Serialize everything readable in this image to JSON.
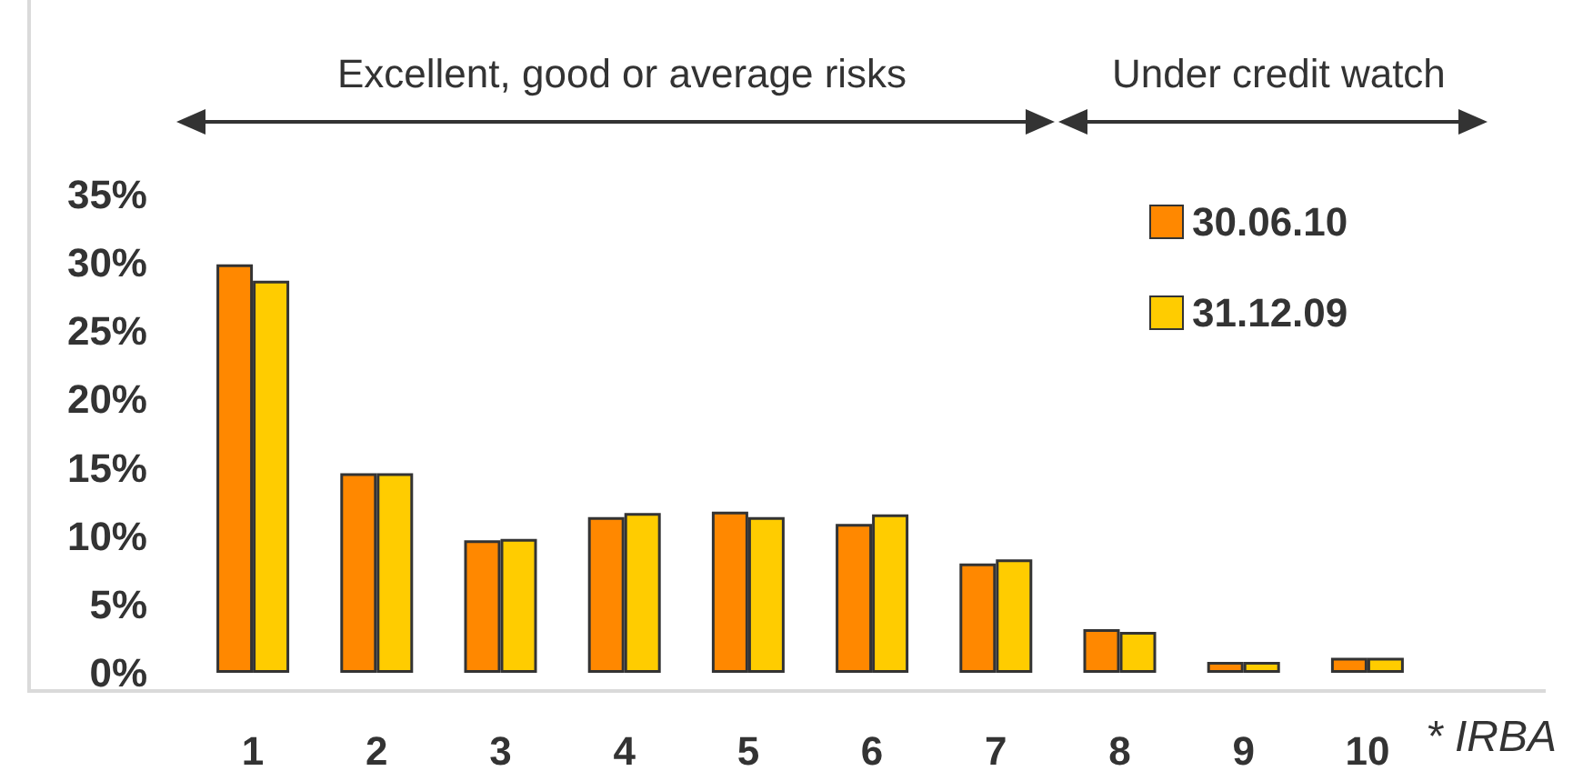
{
  "chart_data": {
    "type": "bar",
    "categories": [
      "1",
      "2",
      "3",
      "4",
      "5",
      "6",
      "7",
      "8",
      "9",
      "10"
    ],
    "series": [
      {
        "name": "30.06.10",
        "color": "#ff8800",
        "values": [
          29.9,
          14.6,
          9.7,
          11.4,
          11.8,
          10.9,
          8.0,
          3.2,
          0.8,
          1.1
        ]
      },
      {
        "name": "31.12.09",
        "color": "#ffcc00",
        "values": [
          28.7,
          14.6,
          9.8,
          11.7,
          11.4,
          11.6,
          8.3,
          3.0,
          0.8,
          1.1
        ]
      }
    ],
    "ylim": [
      0,
      35
    ],
    "yticks": [
      {
        "value": 0,
        "label": "0%"
      },
      {
        "value": 5,
        "label": "5%"
      },
      {
        "value": 10,
        "label": "10%"
      },
      {
        "value": 15,
        "label": "15%"
      },
      {
        "value": 20,
        "label": "20%"
      },
      {
        "value": 25,
        "label": "25%"
      },
      {
        "value": 30,
        "label": "30%"
      },
      {
        "value": 35,
        "label": "35%"
      }
    ],
    "grid": false,
    "legend": "top right",
    "annotations": [
      "Excellent, good or average risks",
      "Under credit watch",
      "* IRBA"
    ]
  }
}
